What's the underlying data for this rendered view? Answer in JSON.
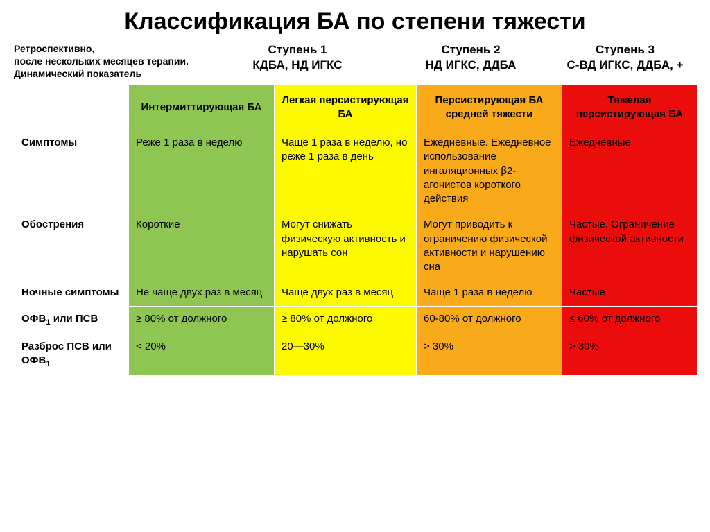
{
  "title": "Классификация БА по степени тяжести",
  "retro_note": "Ретроспективно,\nпосле нескольких месяцев терапии.\nДинамический показатель",
  "steps": {
    "s1": {
      "label": "Ступень 1",
      "sub": "КДБА, НД ИГКС"
    },
    "s2": {
      "label": "Ступень 2",
      "sub": "НД ИГКС, ДДБА"
    },
    "s3": {
      "label": "Ступень 3",
      "sub": "С-ВД ИГКС, ДДБА, +"
    }
  },
  "colors": {
    "green": "#8fc552",
    "yellow": "#fdf900",
    "orange": "#f8aa1b",
    "red": "#eb0d0b",
    "border": "#ffffff"
  },
  "column_headers": {
    "green": "Интермиттирующая БА",
    "yellow": "Легкая персистирующая БА",
    "orange": "Персистирующая БА средней тяжести",
    "red": "Тяжелая персистирующая БА"
  },
  "rows": [
    {
      "label": "Симптомы",
      "green": "Реже 1 раза в неделю",
      "yellow": "Чаще 1 раза в неделю, но реже 1 раза в день",
      "orange": "Ежедневные. Ежедневное использование ингаляционных β2-агонистов короткого действия",
      "red": "Ежедневные"
    },
    {
      "label": "Обострения",
      "green": "Короткие",
      "yellow": "Могут снижать физическую активность и нарушать сон",
      "orange": "Могут приводить к ограничению физической активности и нарушению сна",
      "red": "Частые. Ограничение физической активности"
    },
    {
      "label": "Ночные симптомы",
      "green": "Не чаще двух раз в месяц",
      "yellow": "Чаще двух раз в месяц",
      "orange": "Чаще 1 раза в неделю",
      "red": "Частые"
    },
    {
      "label_html": "ОФВ<sub>1</sub> или ПСВ",
      "label": "ОФВ1 или ПСВ",
      "green": "≥ 80% от должного",
      "yellow": "≥ 80% от должного",
      "orange": "60-80% от должного",
      "red": "≤ 60% от должного"
    },
    {
      "label_html": "Разброс ПСВ или ОФВ<sub>1</sub>",
      "label": "Разброс ПСВ или ОФВ1",
      "green": "< 20%",
      "yellow": "20—30%",
      "orange": "> 30%",
      "red": "> 30%"
    }
  ]
}
